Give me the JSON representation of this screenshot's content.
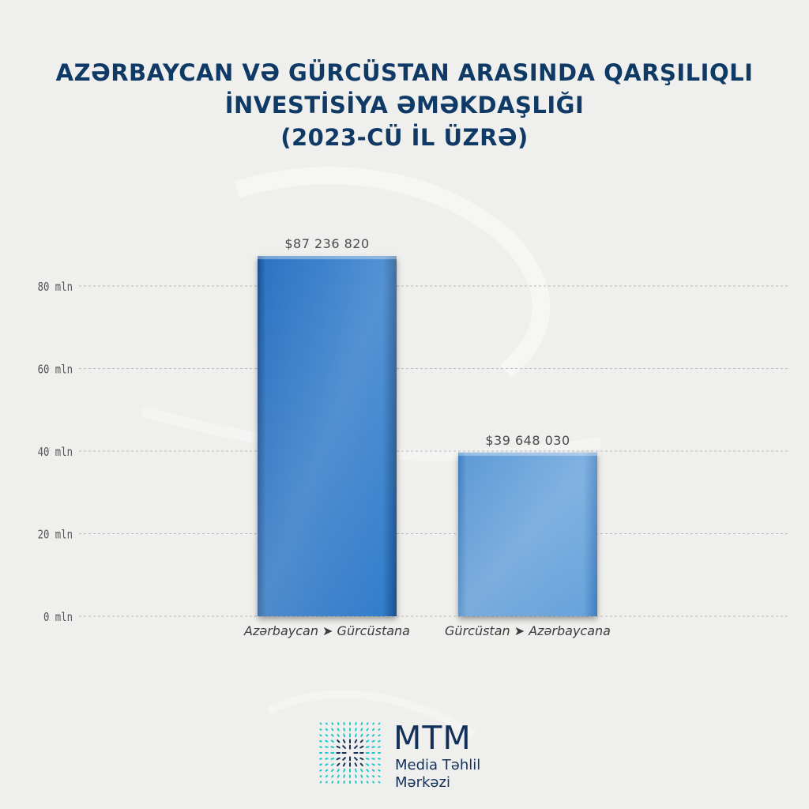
{
  "title": {
    "line1": "AZƏRBAYCAN VƏ GÜRCÜSTAN ARASINDA QARŞILIQLI",
    "line2": "İNVESTİSİYA ƏMƏKDAŞLIĞI",
    "line3": "(2023-CÜ İL ÜZRƏ)"
  },
  "chart_data": {
    "type": "bar",
    "title": "AZƏRBAYCAN VƏ GÜRCÜSTAN ARASINDA QARŞILIQLI İNVESTİSİYA ƏMƏKDAŞLIĞI (2023-CÜ İL ÜZRƏ)",
    "categories": [
      "Azərbaycan ➤ Gürcüstana",
      "Gürcüstan ➤ Azərbaycana"
    ],
    "values": [
      87236820,
      39648030
    ],
    "data_labels": [
      "$87 236 820",
      "$39 648 030"
    ],
    "bar_colors": [
      "#2a72c2",
      "#5e9ad5"
    ],
    "ylim": [
      0,
      80000000
    ],
    "yticks": [
      0,
      20000000,
      40000000,
      60000000,
      80000000
    ],
    "ytick_labels": [
      "0 mln",
      "20 mln",
      "40 mln",
      "60 mln",
      "80 mln"
    ],
    "xlabel": "",
    "ylabel": "",
    "grid": true,
    "legend": "none"
  },
  "logo": {
    "name": "MTM",
    "line1": "Media Təhlil",
    "line2": "Mərkəzi",
    "colors": [
      "#1fc7c9",
      "#13305a"
    ]
  }
}
